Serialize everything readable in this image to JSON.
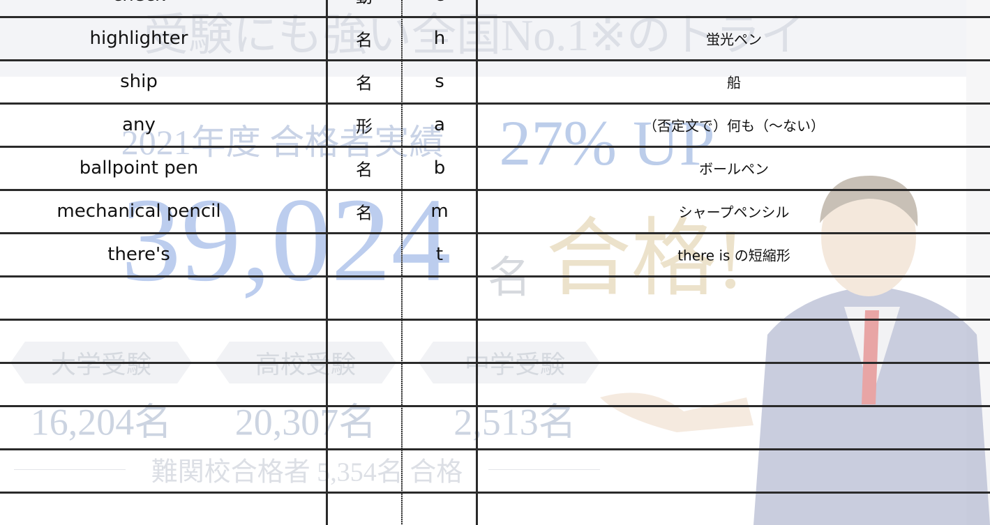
{
  "background": {
    "headline": "受験にも強い全国No.1※のトライ",
    "subtitle": "2021年度 合格者実績",
    "growth": "27% UP",
    "total": "39,024",
    "total_unit": "名",
    "total_suffix": "合格!",
    "segments": [
      {
        "label": "大学受験",
        "count": "16,204名"
      },
      {
        "label": "高校受験",
        "count": "20,307名"
      },
      {
        "label": "中学受験",
        "count": "2,513名"
      }
    ],
    "note": "難関校合格者 5,354名 合格"
  },
  "table": {
    "rows": [
      {
        "word": "check",
        "pos": "動",
        "initial": "c"
      },
      {
        "word": "highlighter",
        "pos": "名",
        "initial": "h",
        "meaning": "蛍光ペン"
      },
      {
        "word": "ship",
        "pos": "名",
        "initial": "s",
        "meaning": "船"
      },
      {
        "word": "any",
        "pos": "形",
        "initial": "a",
        "meaning": "（否定文で）何も（～ない）"
      },
      {
        "word": "ballpoint pen",
        "pos": "名",
        "initial": "b",
        "meaning": "ボールペン"
      },
      {
        "word": "mechanical pencil",
        "pos": "名",
        "initial": "m",
        "meaning": "シャープペンシル"
      },
      {
        "word": "there's",
        "initial": "t",
        "meaning": "there is の短縮形"
      }
    ]
  }
}
